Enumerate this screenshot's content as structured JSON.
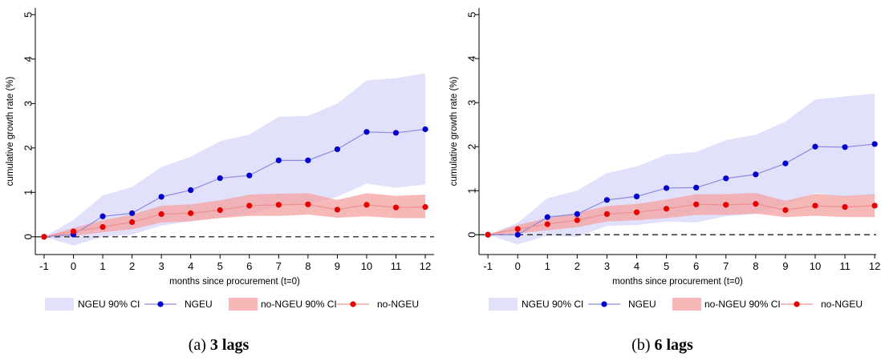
{
  "chart_data": [
    {
      "type": "line",
      "caption_prefix": "(a) ",
      "caption_bold": "3 lags",
      "xlabel": "months since procurement (t=0)",
      "ylabel": "cumulative growth rate (%)",
      "x": [
        -1,
        0,
        1,
        2,
        3,
        4,
        5,
        6,
        7,
        8,
        9,
        10,
        11,
        12
      ],
      "xticks": [
        "-1",
        "0",
        "1",
        "2",
        "3",
        "4",
        "5",
        "6",
        "7",
        "8",
        "9",
        "10",
        "11",
        "12"
      ],
      "yticks": [
        "0",
        "1",
        "2",
        "3",
        "4",
        "5"
      ],
      "xlim": [
        -1.3,
        12.3
      ],
      "ylim": [
        -0.4,
        5.15
      ],
      "reference_line": 0,
      "legend": [
        "NGEU 90% CI",
        "NGEU",
        "no-NGEU 90% CI",
        "no-NGEU"
      ],
      "series": [
        {
          "name": "NGEU",
          "values": [
            0,
            0.05,
            0.46,
            0.53,
            0.9,
            1.05,
            1.32,
            1.38,
            1.72,
            1.72,
            1.97,
            2.36,
            2.34,
            2.42
          ],
          "ci_lower": [
            0,
            -0.2,
            0.0,
            0.05,
            0.25,
            0.35,
            0.45,
            0.5,
            0.7,
            0.72,
            0.9,
            1.2,
            1.1,
            1.18
          ],
          "ci_upper": [
            0,
            0.38,
            0.93,
            1.12,
            1.57,
            1.8,
            2.15,
            2.3,
            2.7,
            2.72,
            3.0,
            3.52,
            3.57,
            3.68
          ],
          "color": "#0000cc",
          "line_color": "#8a8ae0",
          "fill_color": "#dcdcfa"
        },
        {
          "name": "no-NGEU",
          "values": [
            0,
            0.12,
            0.22,
            0.33,
            0.51,
            0.53,
            0.6,
            0.7,
            0.72,
            0.73,
            0.61,
            0.72,
            0.66,
            0.67
          ],
          "ci_lower": [
            0,
            0.02,
            0.1,
            0.17,
            0.32,
            0.35,
            0.42,
            0.47,
            0.47,
            0.5,
            0.43,
            0.46,
            0.42,
            0.42
          ],
          "ci_upper": [
            0,
            0.2,
            0.37,
            0.5,
            0.7,
            0.73,
            0.82,
            0.95,
            0.97,
            0.98,
            0.83,
            0.98,
            0.92,
            0.95
          ],
          "color": "#e60000",
          "line_color": "#f09090",
          "fill_color": "#f4a0a0"
        }
      ]
    },
    {
      "type": "line",
      "caption_prefix": "(b) ",
      "caption_bold": "6 lags",
      "xlabel": "months since procurement (t=0)",
      "ylabel": "cumulative growth rate (%)",
      "x": [
        -1,
        0,
        1,
        2,
        3,
        4,
        5,
        6,
        7,
        8,
        9,
        10,
        11,
        12
      ],
      "xticks": [
        "-1",
        "0",
        "1",
        "2",
        "3",
        "4",
        "5",
        "6",
        "7",
        "8",
        "9",
        "10",
        "11",
        "12"
      ],
      "yticks": [
        "0",
        "1",
        "2",
        "3",
        "4",
        "5"
      ],
      "xlim": [
        -1.3,
        12.05
      ],
      "ylim": [
        -0.45,
        5.15
      ],
      "reference_line": 0,
      "legend": [
        "NGEU 90% CI",
        "NGEU",
        "no-NGEU 90% CI",
        "no-NGEU"
      ],
      "series": [
        {
          "name": "NGEU",
          "values": [
            0,
            0.0,
            0.4,
            0.47,
            0.79,
            0.87,
            1.06,
            1.07,
            1.28,
            1.37,
            1.62,
            2.0,
            1.99,
            2.06
          ],
          "ci_lower": [
            0,
            -0.22,
            -0.02,
            -0.05,
            0.2,
            0.22,
            0.3,
            0.28,
            0.42,
            0.47,
            0.68,
            0.95,
            0.85,
            0.9
          ],
          "ci_upper": [
            0,
            0.27,
            0.83,
            1.0,
            1.4,
            1.55,
            1.82,
            1.88,
            2.15,
            2.27,
            2.57,
            3.07,
            3.14,
            3.21
          ],
          "color": "#0000cc",
          "line_color": "#8a8ae0",
          "fill_color": "#dcdcfa"
        },
        {
          "name": "no-NGEU",
          "values": [
            0,
            0.13,
            0.24,
            0.33,
            0.47,
            0.51,
            0.59,
            0.69,
            0.68,
            0.7,
            0.56,
            0.66,
            0.63,
            0.66
          ],
          "ci_lower": [
            0,
            0.03,
            0.1,
            0.17,
            0.3,
            0.33,
            0.38,
            0.45,
            0.45,
            0.48,
            0.4,
            0.43,
            0.4,
            0.4
          ],
          "ci_upper": [
            0,
            0.22,
            0.38,
            0.5,
            0.65,
            0.7,
            0.8,
            0.92,
            0.92,
            0.95,
            0.77,
            0.93,
            0.88,
            0.92
          ],
          "color": "#e60000",
          "line_color": "#f09090",
          "fill_color": "#f4a0a0"
        }
      ]
    }
  ]
}
